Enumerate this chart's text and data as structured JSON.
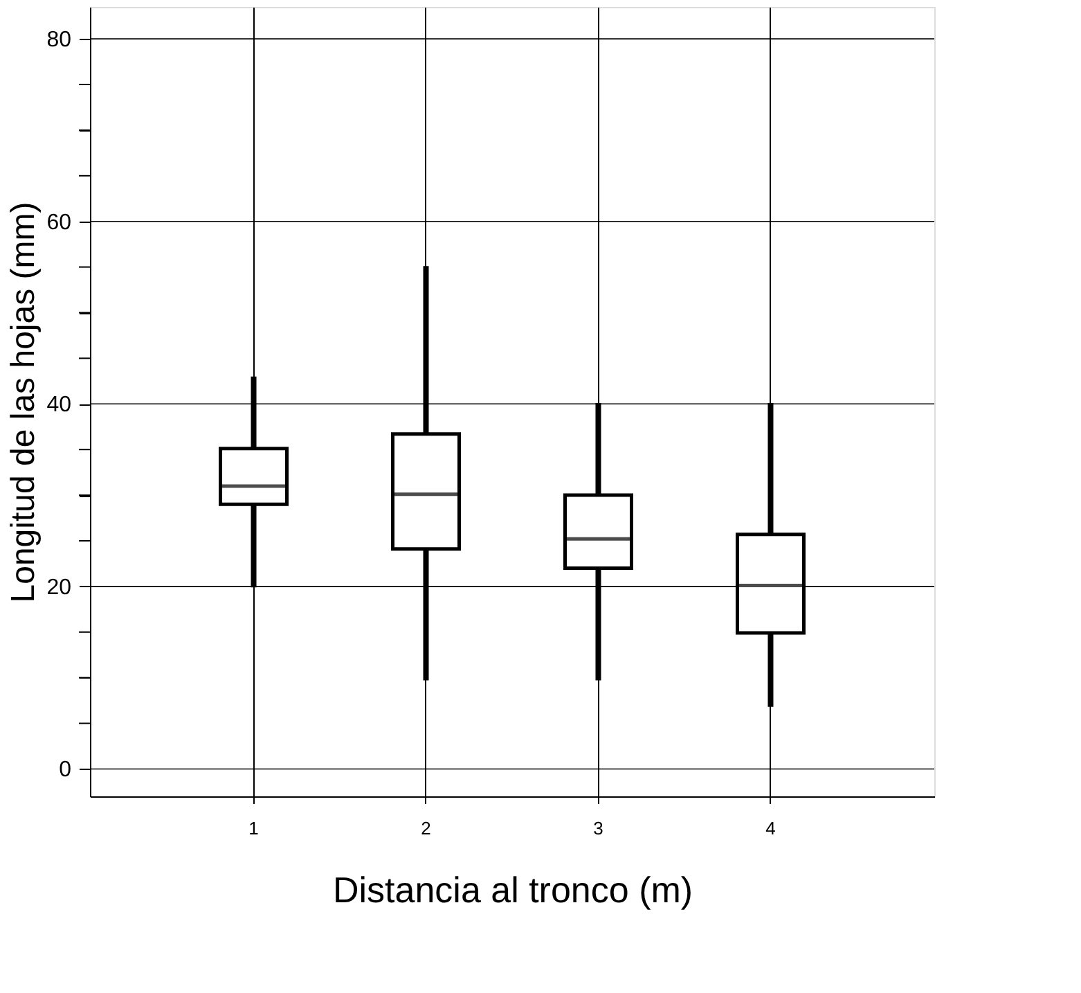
{
  "chart_data": {
    "type": "box",
    "xlabel": "Distancia al tronco (m)",
    "ylabel": "Longitud de las hojas (mm)",
    "categories": [
      "1",
      "2",
      "3",
      "4"
    ],
    "boxes": [
      {
        "low": 19.9,
        "q1": 29,
        "median": 31,
        "q3": 35.1,
        "high": 43
      },
      {
        "low": 9.7,
        "q1": 24.1,
        "median": 30.1,
        "q3": 36.7,
        "high": 55.1
      },
      {
        "low": 9.7,
        "q1": 22,
        "median": 25.2,
        "q3": 30,
        "high": 40.1
      },
      {
        "low": 6.8,
        "q1": 14.9,
        "median": 20.1,
        "q3": 25.7,
        "high": 40.1
      }
    ],
    "color": "#000000",
    "ylim": [
      -3,
      83.5
    ],
    "yticks": [
      0,
      {
        "value": 5,
        "label": null
      },
      {
        "value": 10,
        "label": null
      },
      {
        "value": 15,
        "label": null
      },
      20,
      {
        "value": 25,
        "label": null
      },
      {
        "value": 30,
        "label": null
      },
      {
        "value": 35,
        "label": null
      },
      40,
      {
        "value": 45,
        "label": null
      },
      {
        "value": 50,
        "label": null
      },
      {
        "value": 55,
        "label": null
      },
      60,
      {
        "value": 65,
        "label": null
      },
      {
        "value": 70,
        "label": null
      },
      {
        "value": 75,
        "label": null
      },
      80
    ],
    "grid": true
  }
}
